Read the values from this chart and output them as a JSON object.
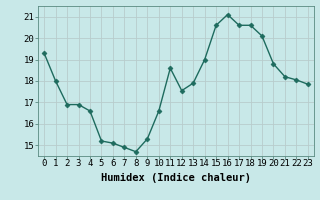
{
  "x": [
    0,
    1,
    2,
    3,
    4,
    5,
    6,
    7,
    8,
    9,
    10,
    11,
    12,
    13,
    14,
    15,
    16,
    17,
    18,
    19,
    20,
    21,
    22,
    23
  ],
  "y": [
    19.3,
    18.0,
    16.9,
    16.9,
    16.6,
    15.2,
    15.1,
    14.9,
    14.7,
    15.3,
    16.6,
    18.6,
    17.55,
    17.9,
    19.0,
    20.6,
    21.1,
    20.6,
    20.6,
    20.1,
    18.8,
    18.2,
    18.05,
    17.85
  ],
  "line_color": "#1e6b5e",
  "marker": "D",
  "marker_size": 2.5,
  "bg_color": "#c8e8e8",
  "grid_color": "#b0d4d4",
  "xlabel": "Humidex (Indice chaleur)",
  "ylim": [
    14.5,
    21.5
  ],
  "yticks": [
    15,
    16,
    17,
    18,
    19,
    20,
    21
  ],
  "xticks": [
    0,
    1,
    2,
    3,
    4,
    5,
    6,
    7,
    8,
    9,
    10,
    11,
    12,
    13,
    14,
    15,
    16,
    17,
    18,
    19,
    20,
    21,
    22,
    23
  ],
  "xtick_labels": [
    "0",
    "1",
    "2",
    "3",
    "4",
    "5",
    "6",
    "7",
    "8",
    "9",
    "10",
    "11",
    "12",
    "13",
    "14",
    "15",
    "16",
    "17",
    "18",
    "19",
    "20",
    "21",
    "22",
    "23"
  ],
  "xlabel_fontsize": 7.5,
  "tick_fontsize": 6.5,
  "line_width": 1.0
}
